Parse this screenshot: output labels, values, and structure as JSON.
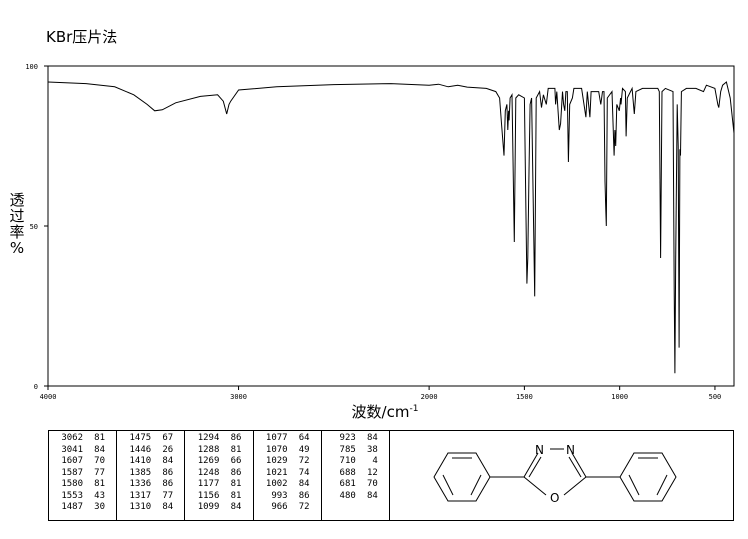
{
  "method_label": "KBr压片法",
  "chart_data": {
    "type": "line",
    "title": "",
    "xlabel_main": "波数/cm",
    "xlabel_sup": "-1",
    "ylabel": [
      "透",
      "过",
      "率",
      "%"
    ],
    "xlim": [
      4000,
      400
    ],
    "ylim": [
      0,
      100
    ],
    "x_ticks": [
      4000,
      3000,
      2000,
      1500,
      1000,
      500
    ],
    "y_ticks": [
      0,
      50,
      100
    ],
    "series": [
      {
        "points": [
          [
            4000,
            95
          ],
          [
            3800,
            94.5
          ],
          [
            3650,
            93.5
          ],
          [
            3550,
            91
          ],
          [
            3480,
            88
          ],
          [
            3440,
            86
          ],
          [
            3400,
            86.3
          ],
          [
            3330,
            88.5
          ],
          [
            3200,
            90.5
          ],
          [
            3110,
            91
          ],
          [
            3080,
            89
          ],
          [
            3062,
            85
          ],
          [
            3050,
            88
          ],
          [
            3041,
            89
          ],
          [
            3000,
            92.5
          ],
          [
            2800,
            93.5
          ],
          [
            2500,
            94.2
          ],
          [
            2200,
            94.5
          ],
          [
            2000,
            94
          ],
          [
            1950,
            94.3
          ],
          [
            1900,
            93.5
          ],
          [
            1850,
            94
          ],
          [
            1800,
            93.4
          ],
          [
            1700,
            93
          ],
          [
            1650,
            92
          ],
          [
            1630,
            90
          ],
          [
            1620,
            82
          ],
          [
            1607,
            72
          ],
          [
            1600,
            86
          ],
          [
            1592,
            88
          ],
          [
            1587,
            80
          ],
          [
            1583,
            86
          ],
          [
            1580,
            83
          ],
          [
            1575,
            90
          ],
          [
            1565,
            91
          ],
          [
            1553,
            45
          ],
          [
            1545,
            90
          ],
          [
            1530,
            91
          ],
          [
            1500,
            90
          ],
          [
            1487,
            32
          ],
          [
            1482,
            40
          ],
          [
            1476,
            67
          ],
          [
            1470,
            88
          ],
          [
            1462,
            90
          ],
          [
            1446,
            28
          ],
          [
            1438,
            90
          ],
          [
            1420,
            92
          ],
          [
            1410,
            87
          ],
          [
            1400,
            91
          ],
          [
            1385,
            88
          ],
          [
            1375,
            93
          ],
          [
            1340,
            93
          ],
          [
            1336,
            88
          ],
          [
            1330,
            92
          ],
          [
            1317,
            80
          ],
          [
            1310,
            82
          ],
          [
            1300,
            92
          ],
          [
            1294,
            88
          ],
          [
            1288,
            86
          ],
          [
            1282,
            92
          ],
          [
            1275,
            92
          ],
          [
            1269,
            70
          ],
          [
            1262,
            88
          ],
          [
            1248,
            90
          ],
          [
            1240,
            93
          ],
          [
            1200,
            93
          ],
          [
            1177,
            84
          ],
          [
            1170,
            92
          ],
          [
            1156,
            84
          ],
          [
            1150,
            92
          ],
          [
            1120,
            92
          ],
          [
            1110,
            92
          ],
          [
            1099,
            88
          ],
          [
            1090,
            92
          ],
          [
            1082,
            92
          ],
          [
            1077,
            64
          ],
          [
            1073,
            55
          ],
          [
            1070,
            50
          ],
          [
            1065,
            90
          ],
          [
            1040,
            92
          ],
          [
            1029,
            72
          ],
          [
            1025,
            80
          ],
          [
            1021,
            75
          ],
          [
            1015,
            88
          ],
          [
            1002,
            86
          ],
          [
            995,
            90
          ],
          [
            993,
            88
          ],
          [
            985,
            93
          ],
          [
            970,
            92
          ],
          [
            966,
            78
          ],
          [
            960,
            90
          ],
          [
            935,
            93
          ],
          [
            923,
            85
          ],
          [
            915,
            92
          ],
          [
            880,
            93
          ],
          [
            800,
            93
          ],
          [
            792,
            92
          ],
          [
            785,
            40
          ],
          [
            778,
            92
          ],
          [
            760,
            93
          ],
          [
            720,
            92
          ],
          [
            714,
            30
          ],
          [
            710,
            4
          ],
          [
            706,
            40
          ],
          [
            698,
            88
          ],
          [
            693,
            75
          ],
          [
            688,
            12
          ],
          [
            684,
            74
          ],
          [
            681,
            72
          ],
          [
            676,
            92
          ],
          [
            650,
            93
          ],
          [
            600,
            93
          ],
          [
            560,
            92
          ],
          [
            545,
            94
          ],
          [
            500,
            93
          ],
          [
            485,
            88
          ],
          [
            480,
            87
          ],
          [
            470,
            92
          ],
          [
            460,
            94
          ],
          [
            440,
            95
          ],
          [
            420,
            90
          ],
          [
            400,
            79
          ]
        ]
      }
    ]
  },
  "peak_table": [
    [
      [
        "3062",
        "81"
      ],
      [
        "3041",
        "84"
      ],
      [
        "1607",
        "70"
      ],
      [
        "1587",
        "77"
      ],
      [
        "1580",
        "81"
      ],
      [
        "1553",
        "43"
      ],
      [
        "1487",
        "30"
      ]
    ],
    [
      [
        "1475",
        "67"
      ],
      [
        "1446",
        "26"
      ],
      [
        "1410",
        "84"
      ],
      [
        "1385",
        "86"
      ],
      [
        "1336",
        "86"
      ],
      [
        "1317",
        "77"
      ],
      [
        "1310",
        "84"
      ]
    ],
    [
      [
        "1294",
        "86"
      ],
      [
        "1288",
        "81"
      ],
      [
        "1269",
        "66"
      ],
      [
        "1248",
        "86"
      ],
      [
        "1177",
        "81"
      ],
      [
        "1156",
        "81"
      ],
      [
        "1099",
        "84"
      ]
    ],
    [
      [
        "1077",
        "64"
      ],
      [
        "1070",
        "49"
      ],
      [
        "1029",
        "72"
      ],
      [
        "1021",
        "74"
      ],
      [
        "1002",
        "84"
      ],
      [
        "993",
        "86"
      ],
      [
        "966",
        "72"
      ]
    ],
    [
      [
        "923",
        "84"
      ],
      [
        "785",
        "38"
      ],
      [
        "710",
        "4"
      ],
      [
        "688",
        "12"
      ],
      [
        "681",
        "70"
      ],
      [
        "480",
        "84"
      ]
    ]
  ],
  "structure": {
    "atom_n1": "N",
    "atom_n2": "N",
    "atom_o": "O"
  }
}
